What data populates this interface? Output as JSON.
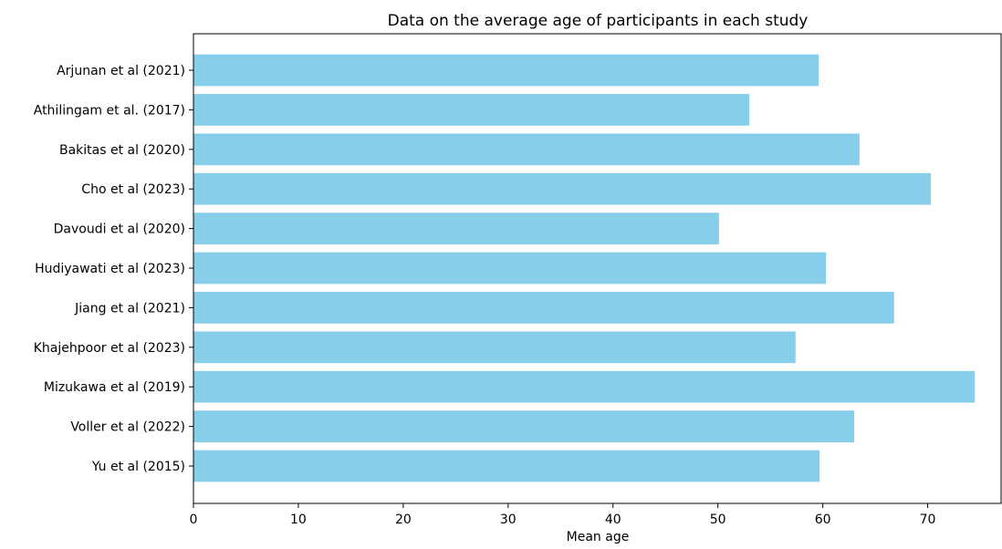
{
  "chart_data": {
    "type": "bar",
    "orientation": "horizontal",
    "title": "Data on the average age of participants in each study",
    "xlabel": "Mean age",
    "ylabel": "",
    "categories": [
      "Arjunan et al (2021)",
      "Athilingam et al. (2017)",
      "Bakitas et al (2020)",
      "Cho et al (2023)",
      "Davoudi et al (2020)",
      "Hudiyawati et al (2023)",
      "Jiang et al (2021)",
      "Khajehpoor et al (2023)",
      "Mizukawa et al (2019)",
      "Voller et al (2022)",
      "Yu et al (2015)"
    ],
    "values": [
      59.6,
      53.0,
      63.5,
      70.3,
      50.1,
      60.3,
      66.8,
      57.4,
      74.5,
      63.0,
      59.7
    ],
    "xlim": [
      0,
      77
    ],
    "xticks": [
      0,
      10,
      20,
      30,
      40,
      50,
      60,
      70
    ],
    "grid": false,
    "bar_color": "#87CEEB"
  }
}
